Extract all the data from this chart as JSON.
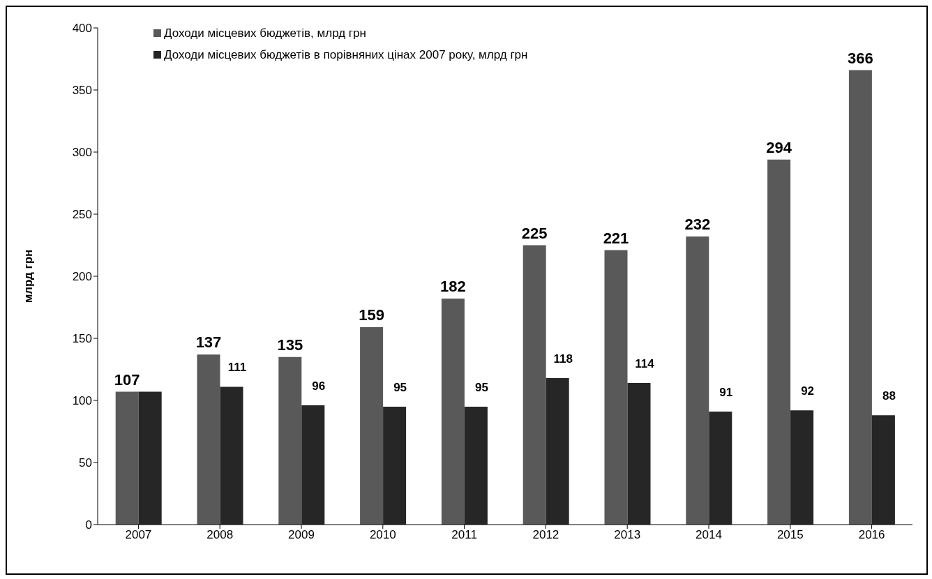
{
  "chart_data": {
    "type": "bar",
    "ylabel": "млрд грн",
    "categories": [
      "2007",
      "2008",
      "2009",
      "2010",
      "2011",
      "2012",
      "2013",
      "2014",
      "2015",
      "2016"
    ],
    "series": [
      {
        "name": "Доходи місцевих бюджетів, млрд грн",
        "color": "#595959",
        "values": [
          107,
          137,
          135,
          159,
          182,
          225,
          221,
          232,
          294,
          366
        ],
        "value_labels": [
          "107",
          "137",
          "135",
          "159",
          "182",
          "225",
          "221",
          "232",
          "294",
          "366"
        ]
      },
      {
        "name": "Доходи місцевих бюджетів в порівняних цінах 2007 року, млрд грн",
        "color": "#262626",
        "values": [
          107,
          111,
          96,
          95,
          95,
          118,
          114,
          91,
          92,
          88
        ],
        "value_labels": [
          null,
          "111",
          "96",
          "95",
          "95",
          "118",
          "114",
          "91",
          "92",
          "88"
        ]
      }
    ],
    "ylim": [
      0,
      400
    ],
    "yticks": [
      0,
      50,
      100,
      150,
      200,
      250,
      300,
      350,
      400
    ],
    "grid": false,
    "legend": "top left"
  }
}
